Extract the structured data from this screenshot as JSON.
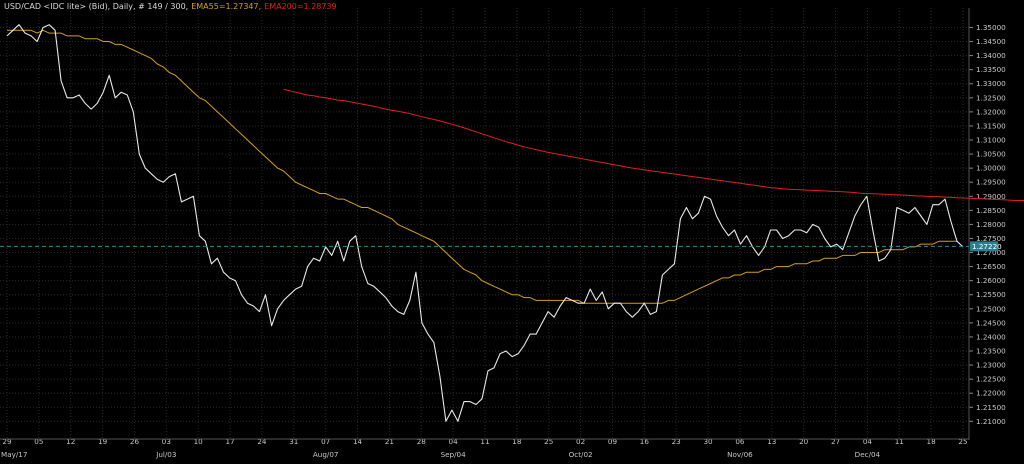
{
  "header": {
    "symbol": "USD/CAD <IDC lite> (Bid), Daily, # 149 / 300,",
    "ema55_label": "EMA55=1.27347,",
    "ema200_label": "EMA200=1.28739"
  },
  "colors": {
    "background": "#000000",
    "grid": "#2a2a2a",
    "price": "#e8e8e8",
    "ema55": "#d4a017",
    "ema200": "#e02020",
    "current_line": "#2a8a9a",
    "current_tag_bg": "#2a7f8f",
    "header_text": "#d8d8d8",
    "axis_text": "#c8c8c8"
  },
  "chart_data": {
    "type": "line",
    "title": "USD/CAD <IDC lite> (Bid), Daily, # 149 / 300",
    "ylim": [
      1.205,
      1.355
    ],
    "grid": true,
    "current_price": 1.2722,
    "current_price_label": "1.27220",
    "y_ticks": [
      "1.35000",
      "1.34500",
      "1.34000",
      "1.33500",
      "1.33000",
      "1.32500",
      "1.32000",
      "1.31500",
      "1.31000",
      "1.30500",
      "1.30000",
      "1.29500",
      "1.29000",
      "1.28500",
      "1.28000",
      "1.27500",
      "1.27000",
      "1.26500",
      "1.26000",
      "1.25500",
      "1.25000",
      "1.24500",
      "1.24000",
      "1.23500",
      "1.23000",
      "1.22500",
      "1.22000",
      "1.21500",
      "1.21000"
    ],
    "x_ticks": [
      "29",
      "05",
      "12",
      "19",
      "26",
      "03",
      "10",
      "17",
      "24",
      "31",
      "07",
      "14",
      "21",
      "28",
      "04",
      "11",
      "18",
      "25",
      "02",
      "09",
      "16",
      "23",
      "30",
      "06",
      "13",
      "20",
      "27",
      "04",
      "11",
      "18",
      "25"
    ],
    "month_labels": [
      {
        "label": "May/17",
        "tick": 0
      },
      {
        "label": "Jul/03",
        "tick": 5
      },
      {
        "label": "Aug/07",
        "tick": 10
      },
      {
        "label": "Sep/04",
        "tick": 14
      },
      {
        "label": "Oct/02",
        "tick": 18
      },
      {
        "label": "Nov/06",
        "tick": 23
      },
      {
        "label": "Dec/04",
        "tick": 27
      }
    ],
    "series": [
      {
        "name": "USD/CAD",
        "color": "#e8e8e8",
        "values": [
          1.347,
          1.349,
          1.351,
          1.348,
          1.347,
          1.345,
          1.35,
          1.351,
          1.349,
          1.331,
          1.325,
          1.325,
          1.326,
          1.323,
          1.321,
          1.323,
          1.327,
          1.333,
          1.325,
          1.327,
          1.326,
          1.32,
          1.305,
          1.3,
          1.298,
          1.296,
          1.295,
          1.297,
          1.298,
          1.288,
          1.289,
          1.29,
          1.276,
          1.274,
          1.266,
          1.268,
          1.263,
          1.261,
          1.26,
          1.255,
          1.252,
          1.251,
          1.249,
          1.255,
          1.244,
          1.25,
          1.253,
          1.255,
          1.257,
          1.258,
          1.265,
          1.268,
          1.267,
          1.272,
          1.269,
          1.274,
          1.267,
          1.274,
          1.276,
          1.265,
          1.259,
          1.258,
          1.256,
          1.254,
          1.251,
          1.249,
          1.248,
          1.253,
          1.263,
          1.245,
          1.241,
          1.238,
          1.226,
          1.21,
          1.214,
          1.21,
          1.217,
          1.217,
          1.216,
          1.218,
          1.228,
          1.229,
          1.234,
          1.235,
          1.233,
          1.234,
          1.237,
          1.241,
          1.241,
          1.245,
          1.249,
          1.247,
          1.251,
          1.254,
          1.253,
          1.252,
          1.252,
          1.257,
          1.253,
          1.256,
          1.25,
          1.252,
          1.252,
          1.249,
          1.247,
          1.249,
          1.252,
          1.248,
          1.249,
          1.262,
          1.264,
          1.266,
          1.282,
          1.286,
          1.282,
          1.284,
          1.29,
          1.289,
          1.283,
          1.279,
          1.276,
          1.278,
          1.273,
          1.276,
          1.272,
          1.269,
          1.272,
          1.278,
          1.278,
          1.275,
          1.276,
          1.278,
          1.278,
          1.277,
          1.28,
          1.279,
          1.275,
          1.272,
          1.273,
          1.271,
          1.277,
          1.283,
          1.287,
          1.29,
          1.278,
          1.267,
          1.268,
          1.271,
          1.286,
          1.285,
          1.284,
          1.286,
          1.283,
          1.28,
          1.287,
          1.287,
          1.289,
          1.281,
          1.274,
          1.272
        ]
      },
      {
        "name": "EMA55",
        "label": "EMA55=1.27347",
        "color": "#d4a017",
        "values": [
          1.349,
          1.349,
          1.349,
          1.349,
          1.349,
          1.348,
          1.349,
          1.348,
          1.348,
          1.348,
          1.347,
          1.347,
          1.347,
          1.346,
          1.346,
          1.346,
          1.345,
          1.345,
          1.344,
          1.344,
          1.343,
          1.342,
          1.341,
          1.34,
          1.339,
          1.337,
          1.336,
          1.334,
          1.333,
          1.331,
          1.329,
          1.327,
          1.325,
          1.324,
          1.322,
          1.32,
          1.318,
          1.316,
          1.314,
          1.312,
          1.31,
          1.308,
          1.306,
          1.304,
          1.302,
          1.3,
          1.299,
          1.297,
          1.295,
          1.294,
          1.293,
          1.292,
          1.291,
          1.291,
          1.29,
          1.289,
          1.289,
          1.288,
          1.287,
          1.286,
          1.286,
          1.285,
          1.284,
          1.283,
          1.282,
          1.28,
          1.279,
          1.278,
          1.277,
          1.276,
          1.275,
          1.274,
          1.272,
          1.27,
          1.268,
          1.266,
          1.264,
          1.263,
          1.262,
          1.26,
          1.259,
          1.258,
          1.257,
          1.256,
          1.255,
          1.255,
          1.254,
          1.254,
          1.253,
          1.253,
          1.253,
          1.253,
          1.253,
          1.253,
          1.253,
          1.253,
          1.252,
          1.252,
          1.252,
          1.252,
          1.252,
          1.252,
          1.252,
          1.252,
          1.252,
          1.252,
          1.252,
          1.252,
          1.252,
          1.252,
          1.253,
          1.253,
          1.254,
          1.255,
          1.256,
          1.257,
          1.258,
          1.259,
          1.26,
          1.261,
          1.261,
          1.262,
          1.262,
          1.263,
          1.263,
          1.263,
          1.264,
          1.264,
          1.265,
          1.265,
          1.265,
          1.266,
          1.266,
          1.266,
          1.267,
          1.267,
          1.268,
          1.268,
          1.268,
          1.269,
          1.269,
          1.269,
          1.27,
          1.27,
          1.27,
          1.27,
          1.271,
          1.271,
          1.271,
          1.271,
          1.272,
          1.272,
          1.273,
          1.273,
          1.273,
          1.274,
          1.274,
          1.274,
          1.274
        ]
      },
      {
        "name": "EMA200",
        "label": "EMA200=1.28739",
        "color": "#e02020",
        "start_index": 46,
        "values": [
          1.328,
          1.3275,
          1.327,
          1.3265,
          1.326,
          1.3257,
          1.3253,
          1.325,
          1.3246,
          1.3242,
          1.324,
          1.3236,
          1.3232,
          1.3228,
          1.3224,
          1.322,
          1.3215,
          1.321,
          1.3206,
          1.3202,
          1.3198,
          1.3194,
          1.3188,
          1.3183,
          1.3178,
          1.3173,
          1.3168,
          1.3162,
          1.3156,
          1.315,
          1.3143,
          1.3136,
          1.3129,
          1.3122,
          1.3115,
          1.3108,
          1.3101,
          1.3094,
          1.3088,
          1.3082,
          1.3076,
          1.3071,
          1.3066,
          1.3061,
          1.3056,
          1.3052,
          1.3048,
          1.3044,
          1.304,
          1.3036,
          1.3032,
          1.3028,
          1.3024,
          1.302,
          1.3016,
          1.3012,
          1.3008,
          1.3004,
          1.3,
          1.2997,
          1.2994,
          1.2991,
          1.2988,
          1.2985,
          1.2982,
          1.2979,
          1.2976,
          1.2973,
          1.297,
          1.2967,
          1.2964,
          1.2961,
          1.2958,
          1.2955,
          1.2952,
          1.2949,
          1.2946,
          1.2943,
          1.294,
          1.2937,
          1.2934,
          1.2931,
          1.2929,
          1.2927,
          1.2925,
          1.2924,
          1.2923,
          1.2922,
          1.2921,
          1.292,
          1.2919,
          1.2918,
          1.2917,
          1.2916,
          1.2915,
          1.2913,
          1.2911,
          1.291,
          1.2909,
          1.2908,
          1.2907,
          1.2906,
          1.2905,
          1.2904,
          1.2903,
          1.2902,
          1.2901,
          1.29,
          1.2899,
          1.2898,
          1.2897,
          1.2896,
          1.2895,
          1.2894,
          1.2893,
          1.2892,
          1.2891,
          1.289,
          1.2889,
          1.2888,
          1.2887,
          1.2886,
          1.2885,
          1.2885,
          1.2884,
          1.2884,
          1.2883,
          1.2883,
          1.2882,
          1.2882,
          1.2881,
          1.2881,
          1.288,
          1.288,
          1.2879,
          1.2879,
          1.2878,
          1.2878,
          1.2877,
          1.2877,
          1.2876,
          1.2876,
          1.2875,
          1.2874
        ]
      }
    ]
  }
}
